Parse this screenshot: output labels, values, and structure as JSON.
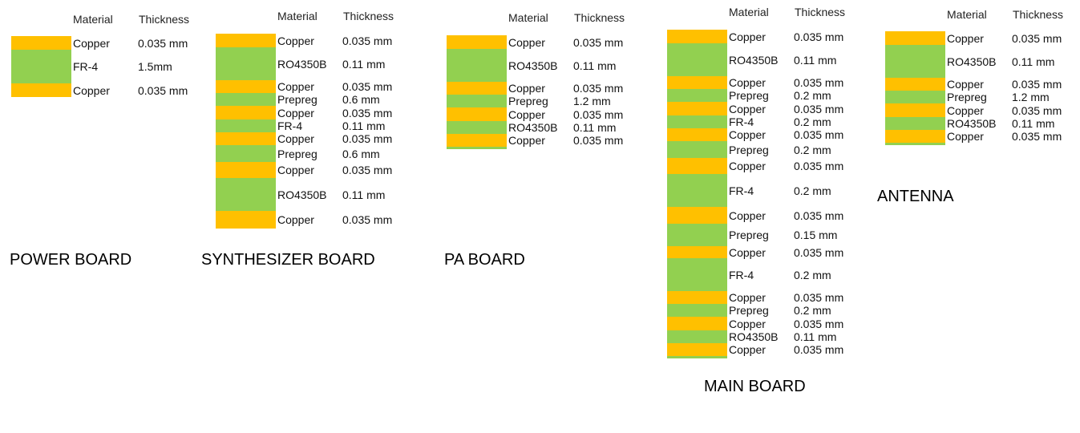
{
  "colors": {
    "copper": "#FFC000",
    "dielectric": "#92D050"
  },
  "boards": [
    {
      "title": "POWER BOARD",
      "header_material": "Material",
      "header_thickness": "Thickness",
      "layers": [
        {
          "material": "Copper",
          "thickness": "0.035 mm"
        },
        {
          "material": "FR-4",
          "thickness": "1.5mm"
        },
        {
          "material": "Copper",
          "thickness": "0.035 mm"
        }
      ]
    },
    {
      "title": "SYNTHESIZER BOARD",
      "header_material": "Material",
      "header_thickness": "Thickness",
      "layers": [
        {
          "material": "Copper",
          "thickness": "0.035 mm"
        },
        {
          "material": "RO4350B",
          "thickness": "0.11 mm"
        },
        {
          "material": "Copper",
          "thickness": "0.035 mm"
        },
        {
          "material": "Prepreg",
          "thickness": "0.6 mm"
        },
        {
          "material": "Copper",
          "thickness": "0.035 mm"
        },
        {
          "material": "FR-4",
          "thickness": "0.11 mm"
        },
        {
          "material": "Copper",
          "thickness": "0.035 mm"
        },
        {
          "material": "Prepreg",
          "thickness": "0.6 mm"
        },
        {
          "material": "Copper",
          "thickness": "0.035 mm"
        },
        {
          "material": "RO4350B",
          "thickness": "0.11 mm"
        },
        {
          "material": "Copper",
          "thickness": "0.035 mm"
        }
      ]
    },
    {
      "title": "PA BOARD",
      "header_material": "Material",
      "header_thickness": "Thickness",
      "layers": [
        {
          "material": "Copper",
          "thickness": "0.035 mm"
        },
        {
          "material": "RO4350B",
          "thickness": "0.11 mm"
        },
        {
          "material": "Copper",
          "thickness": "0.035 mm"
        },
        {
          "material": "Prepreg",
          "thickness": "1.2 mm"
        },
        {
          "material": "Copper",
          "thickness": "0.035 mm"
        },
        {
          "material": "RO4350B",
          "thickness": "0.11 mm"
        },
        {
          "material": "Copper",
          "thickness": "0.035 mm"
        }
      ]
    },
    {
      "title": "MAIN BOARD",
      "header_material": "Material",
      "header_thickness": "Thickness",
      "layers": [
        {
          "material": "Copper",
          "thickness": "0.035 mm"
        },
        {
          "material": "RO4350B",
          "thickness": "0.11 mm"
        },
        {
          "material": "Copper",
          "thickness": "0.035  mm"
        },
        {
          "material": "Prepreg",
          "thickness": "0.2 mm"
        },
        {
          "material": "Copper",
          "thickness": "0.035 mm"
        },
        {
          "material": "FR-4",
          "thickness": "0.2 mm"
        },
        {
          "material": "Copper",
          "thickness": "0.035 mm"
        },
        {
          "material": "Prepreg",
          "thickness": "0.2 mm"
        },
        {
          "material": "Copper",
          "thickness": "0.035 mm"
        },
        {
          "material": "FR-4",
          "thickness": "0.2 mm"
        },
        {
          "material": "Copper",
          "thickness": "0.035 mm"
        },
        {
          "material": "Prepreg",
          "thickness": "0.15 mm"
        },
        {
          "material": "Copper",
          "thickness": "0.035 mm"
        },
        {
          "material": "FR-4",
          "thickness": "0.2 mm"
        },
        {
          "material": "Copper",
          "thickness": "0.035 mm"
        },
        {
          "material": "Prepreg",
          "thickness": "0.2 mm"
        },
        {
          "material": "Copper",
          "thickness": "0.035 mm"
        },
        {
          "material": "RO4350B",
          "thickness": "0.11 mm"
        },
        {
          "material": "Copper",
          "thickness": "0.035 mm"
        }
      ]
    },
    {
      "title": "ANTENNA",
      "header_material": "Material",
      "header_thickness": "Thickness",
      "layers": [
        {
          "material": "Copper",
          "thickness": "0.035 mm"
        },
        {
          "material": "RO4350B",
          "thickness": "0.11 mm"
        },
        {
          "material": "Copper",
          "thickness": "0.035 mm"
        },
        {
          "material": "Prepreg",
          "thickness": "1.2 mm"
        },
        {
          "material": "Copper",
          "thickness": "0.035 mm"
        },
        {
          "material": "RO4350B",
          "thickness": "0.11 mm"
        },
        {
          "material": "Copper",
          "thickness": "0.035 mm"
        }
      ]
    }
  ]
}
